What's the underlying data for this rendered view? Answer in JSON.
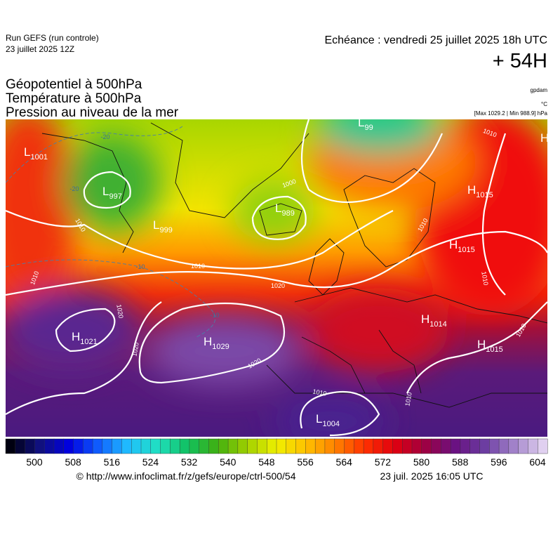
{
  "header": {
    "run": "Run GEFS (run controle)",
    "run_date": "23 juillet 2025 12Z",
    "echeance": "Echéance : vendredi 25 juillet 2025 18h UTC",
    "lead": "+ 54H"
  },
  "titles": [
    "Géopotentiel à 500hPa",
    "Température à 500hPa",
    "Pression au niveau de la mer"
  ],
  "units": {
    "geopotential": "gpdam",
    "temperature": "°C",
    "pressure": "[Max 1029.2 | Min 988.9] hPa"
  },
  "map": {
    "centers": [
      {
        "letter": "L",
        "value": 1001
      },
      {
        "letter": "L",
        "value": 997
      },
      {
        "letter": "L",
        "value": 999
      },
      {
        "letter": "L",
        "value": 989
      },
      {
        "letter": "L",
        "value": 99
      },
      {
        "letter": "H",
        "value": 1015
      },
      {
        "letter": "H",
        "value": 1015
      },
      {
        "letter": "H",
        "value": 1014
      },
      {
        "letter": "H",
        "value": 1015
      },
      {
        "letter": "H",
        "value": 1021
      },
      {
        "letter": "H",
        "value": 1029
      },
      {
        "letter": "L",
        "value": 1004
      },
      {
        "letter": "H"
      }
    ],
    "isobar_labels": [
      1010,
      1010,
      1020,
      1020,
      1020,
      1020,
      1010,
      1010,
      1000,
      1010,
      1010,
      1010,
      1010,
      1010
    ],
    "temperature_labels": [
      -20,
      -20,
      -10,
      -10
    ]
  },
  "colorbar": {
    "labels": [
      500,
      508,
      516,
      524,
      532,
      540,
      548,
      556,
      564,
      572,
      580,
      588,
      596,
      604
    ]
  },
  "footer": {
    "url": "© http://www.infoclimat.fr/z/gefs/europe/ctrl-500/54",
    "timestamp": "23 juil. 2025 16:05 UTC"
  }
}
